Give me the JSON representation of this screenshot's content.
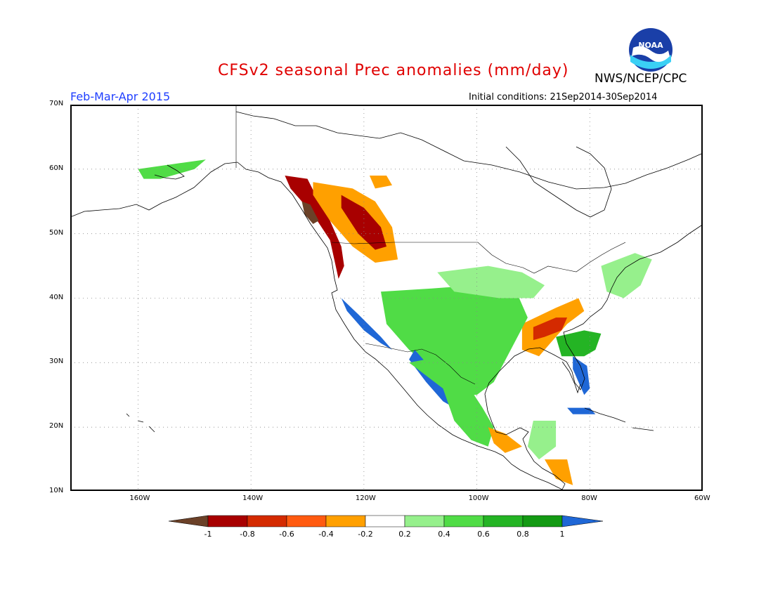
{
  "header": {
    "title": "CFSv2 seasonal Prec anomalies (mm/day)",
    "agency": "NWS/NCEP/CPC",
    "logo_text": "NOAA",
    "season": "Feb-Mar-Apr 2015",
    "initial_conditions": "Initial conditions: 21Sep2014-30Sep2014"
  },
  "map": {
    "projection": "lat-lon",
    "lon_range": [
      -172,
      -60
    ],
    "lat_range": [
      10,
      70
    ],
    "lat_ticks": [
      {
        "value": 70,
        "label": "70N"
      },
      {
        "value": 60,
        "label": "60N"
      },
      {
        "value": 50,
        "label": "50N"
      },
      {
        "value": 40,
        "label": "40N"
      },
      {
        "value": 30,
        "label": "30N"
      },
      {
        "value": 20,
        "label": "20N"
      },
      {
        "value": 10,
        "label": "10N"
      }
    ],
    "lon_ticks": [
      {
        "value": -160,
        "label": "160W"
      },
      {
        "value": -140,
        "label": "140W"
      },
      {
        "value": -120,
        "label": "120W"
      },
      {
        "value": -100,
        "label": "100W"
      },
      {
        "value": -80,
        "label": "80W"
      },
      {
        "value": -60,
        "label": "60W"
      }
    ],
    "grid": "dotted"
  },
  "legend": {
    "labels": [
      "-1",
      "-0.8",
      "-0.6",
      "-0.4",
      "-0.2",
      "0.2",
      "0.4",
      "0.6",
      "0.8",
      "1"
    ],
    "colors": [
      "#6b4128",
      "#a80000",
      "#d42a00",
      "#ff5a10",
      "#ffa000",
      "#ffffff",
      "#96f08c",
      "#50dc46",
      "#24b424",
      "#139a13",
      "#1f67d6"
    ]
  },
  "anomaly_regions": [
    {
      "name": "pacific-northwest-coast",
      "color": "#a80000",
      "points": [
        [
          -134,
          59
        ],
        [
          -130,
          58.5
        ],
        [
          -128,
          55
        ],
        [
          -126,
          52
        ],
        [
          -124,
          48
        ],
        [
          -123.5,
          45
        ],
        [
          -124.5,
          43
        ],
        [
          -125,
          45
        ],
        [
          -126,
          49
        ],
        [
          -129,
          53
        ],
        [
          -133,
          57
        ]
      ]
    },
    {
      "name": "bc-coast-core",
      "color": "#6b4128",
      "points": [
        [
          -131,
          55
        ],
        [
          -129.5,
          54.5
        ],
        [
          -128,
          52
        ],
        [
          -129,
          51.5
        ],
        [
          -130.5,
          53
        ]
      ]
    },
    {
      "name": "bc-interior",
      "color": "#ffa000",
      "points": [
        [
          -129,
          58
        ],
        [
          -122,
          57
        ],
        [
          -118,
          55
        ],
        [
          -115,
          51
        ],
        [
          -114,
          46
        ],
        [
          -118,
          45.5
        ],
        [
          -122,
          48
        ],
        [
          -126,
          52
        ],
        [
          -129,
          56
        ]
      ]
    },
    {
      "name": "bc-interior-core",
      "color": "#a80000",
      "points": [
        [
          -124,
          56
        ],
        [
          -120,
          54
        ],
        [
          -117,
          51
        ],
        [
          -116,
          48
        ],
        [
          -118,
          47.5
        ],
        [
          -121,
          50
        ],
        [
          -124,
          54
        ]
      ]
    },
    {
      "name": "canadian-rockies-north",
      "color": "#ffa000",
      "points": [
        [
          -119,
          59
        ],
        [
          -116,
          59
        ],
        [
          -115,
          57.5
        ],
        [
          -118,
          57
        ]
      ]
    },
    {
      "name": "southeast-us",
      "color": "#ffa000",
      "points": [
        [
          -92,
          36
        ],
        [
          -86,
          38.5
        ],
        [
          -82,
          40
        ],
        [
          -81,
          38
        ],
        [
          -84,
          36
        ],
        [
          -87,
          33
        ],
        [
          -89,
          31
        ],
        [
          -92,
          32
        ]
      ]
    },
    {
      "name": "southeast-us-core",
      "color": "#d42a00",
      "points": [
        [
          -90,
          35.5
        ],
        [
          -86,
          37
        ],
        [
          -84,
          37
        ],
        [
          -85,
          35
        ],
        [
          -88,
          34
        ],
        [
          -90,
          33.5
        ]
      ]
    },
    {
      "name": "great-plains",
      "color": "#50dc46",
      "points": [
        [
          -117,
          41
        ],
        [
          -108,
          41.5
        ],
        [
          -100,
          42
        ],
        [
          -93,
          41
        ],
        [
          -91,
          37
        ],
        [
          -94,
          32
        ],
        [
          -97,
          27
        ],
        [
          -100,
          25
        ],
        [
          -104,
          25
        ],
        [
          -108,
          29
        ],
        [
          -112,
          32
        ],
        [
          -116,
          36
        ]
      ]
    },
    {
      "name": "midwest-light",
      "color": "#96f08c",
      "points": [
        [
          -107,
          44
        ],
        [
          -98,
          45
        ],
        [
          -92,
          44
        ],
        [
          -88,
          42
        ],
        [
          -90,
          40
        ],
        [
          -96,
          40
        ],
        [
          -104,
          41
        ]
      ]
    },
    {
      "name": "southwest-coast",
      "color": "#1f67d6",
      "points": [
        [
          -124,
          40
        ],
        [
          -121,
          37.5
        ],
        [
          -117,
          34
        ],
        [
          -115,
          32
        ],
        [
          -117,
          33
        ],
        [
          -120,
          35
        ],
        [
          -123,
          38
        ]
      ]
    },
    {
      "name": "mexico-west-coast",
      "color": "#1f67d6",
      "points": [
        [
          -111,
          32
        ],
        [
          -108,
          29
        ],
        [
          -105,
          25.5
        ],
        [
          -104,
          23
        ],
        [
          -106,
          24
        ],
        [
          -109,
          27
        ],
        [
          -112,
          30.5
        ]
      ]
    },
    {
      "name": "mexico-interior",
      "color": "#50dc46",
      "points": [
        [
          -112,
          30
        ],
        [
          -106,
          26
        ],
        [
          -104,
          21
        ],
        [
          -101,
          18
        ],
        [
          -98,
          17
        ],
        [
          -97,
          20
        ],
        [
          -99,
          23
        ],
        [
          -102,
          27
        ],
        [
          -106,
          31
        ]
      ]
    },
    {
      "name": "florida",
      "color": "#1f67d6",
      "points": [
        [
          -83,
          31
        ],
        [
          -80.5,
          29.5
        ],
        [
          -80,
          26
        ],
        [
          -81,
          25
        ],
        [
          -82,
          27
        ],
        [
          -83,
          29
        ]
      ]
    },
    {
      "name": "southeast-coast-green",
      "color": "#24b424",
      "points": [
        [
          -86,
          34
        ],
        [
          -81,
          35
        ],
        [
          -78,
          34.5
        ],
        [
          -79,
          32
        ],
        [
          -81,
          31
        ],
        [
          -85,
          31
        ]
      ]
    },
    {
      "name": "northeast-green",
      "color": "#96f08c",
      "points": [
        [
          -78,
          45
        ],
        [
          -72,
          47
        ],
        [
          -69,
          46
        ],
        [
          -71,
          42
        ],
        [
          -74,
          40
        ],
        [
          -77,
          41
        ]
      ]
    },
    {
      "name": "alaska-southwest",
      "color": "#50dc46",
      "points": [
        [
          -160,
          60
        ],
        [
          -152,
          61
        ],
        [
          -148,
          61.5
        ],
        [
          -150,
          60
        ],
        [
          -156,
          58.5
        ],
        [
          -159,
          58.5
        ]
      ]
    },
    {
      "name": "central-america-orange",
      "color": "#ffa000",
      "points": [
        [
          -98,
          20
        ],
        [
          -95,
          19
        ],
        [
          -92,
          17
        ],
        [
          -95,
          16
        ],
        [
          -97,
          17.5
        ]
      ]
    },
    {
      "name": "central-america-green",
      "color": "#96f08c",
      "points": [
        [
          -90,
          21
        ],
        [
          -86,
          21
        ],
        [
          -86,
          17
        ],
        [
          -89,
          15
        ],
        [
          -91,
          17
        ]
      ]
    },
    {
      "name": "cuba-blue",
      "color": "#1f67d6",
      "points": [
        [
          -84,
          23
        ],
        [
          -80,
          23
        ],
        [
          -79,
          22
        ],
        [
          -83,
          22
        ]
      ]
    },
    {
      "name": "panama-orange",
      "color": "#ffa000",
      "points": [
        [
          -88,
          15
        ],
        [
          -84,
          15
        ],
        [
          -83,
          11
        ],
        [
          -86,
          12
        ]
      ]
    }
  ]
}
